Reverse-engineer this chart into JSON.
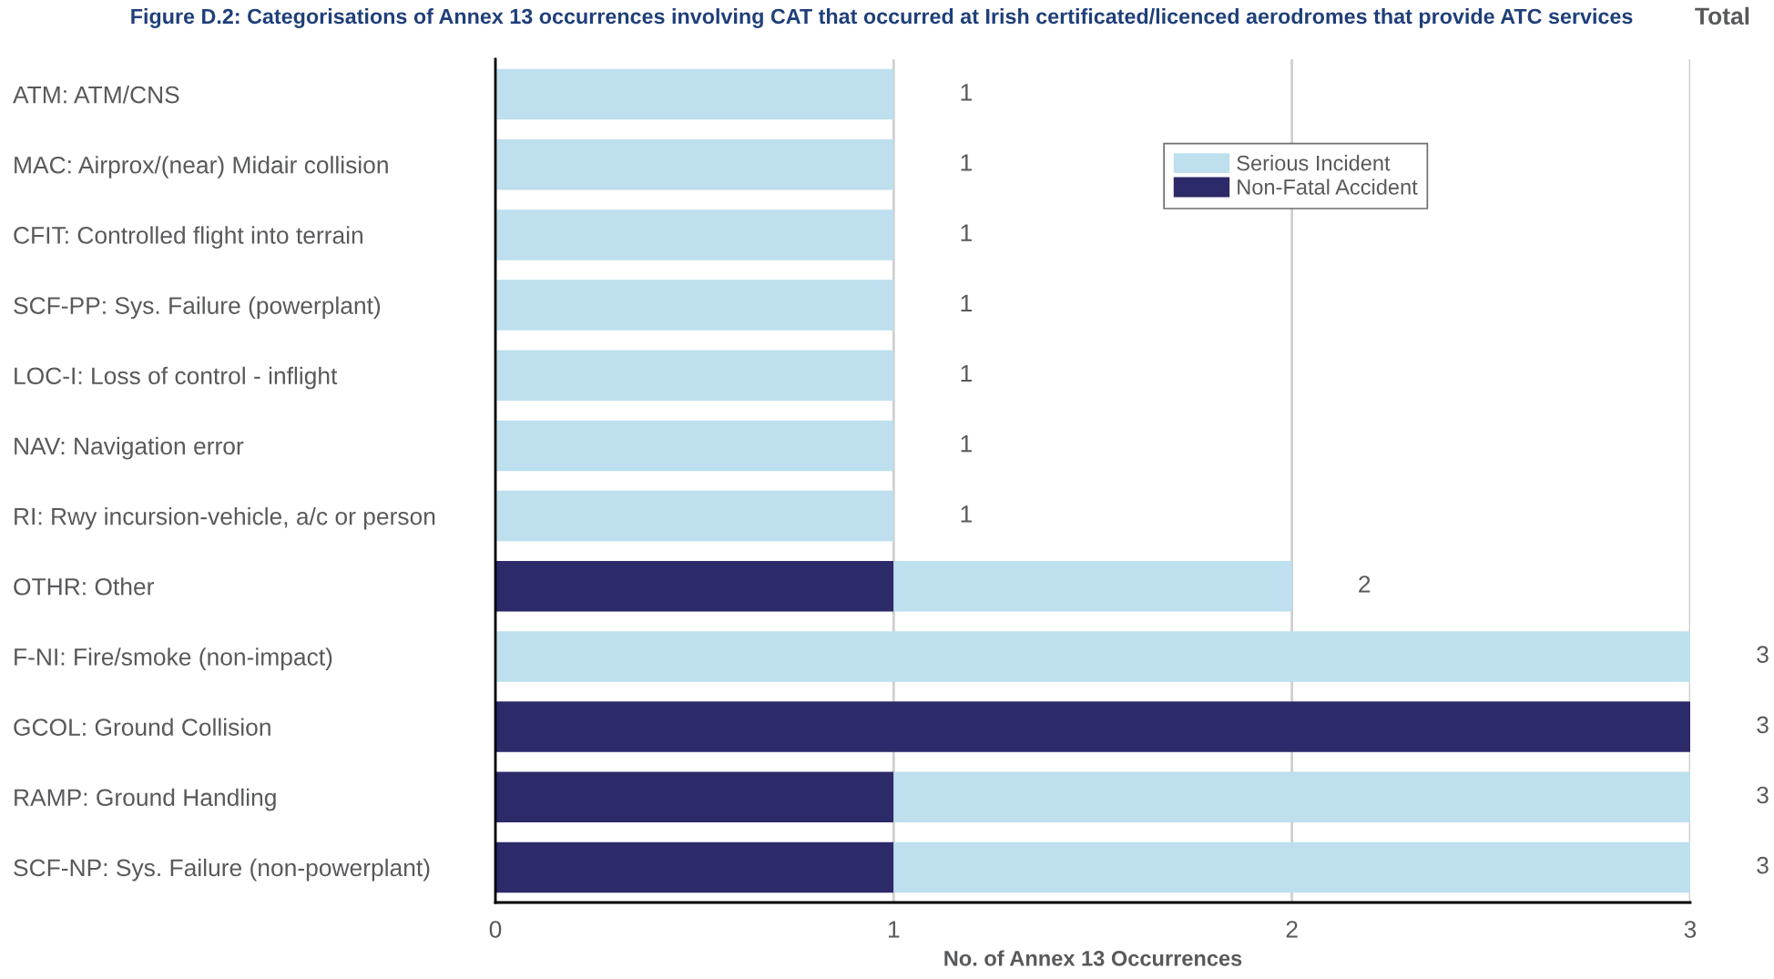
{
  "chart_data": {
    "type": "bar",
    "orientation": "horizontal",
    "stacked": true,
    "title": "Figure D.2: Categorisations of Annex 13 occurrences involving CAT that occurred at Irish certificated/licenced aerodromes that provide ATC services",
    "xlabel": "No. of Annex 13 Occurrences",
    "annotations": [
      "Total"
    ],
    "categories": [
      "ATM: ATM/CNS",
      "MAC: Airprox/(near) Midair collision",
      "CFIT: Controlled flight into terrain",
      "SCF-PP: Sys. Failure (powerplant)",
      "LOC-I: Loss of control - inflight",
      "NAV: Navigation error",
      "RI: Rwy incursion-vehicle, a/c or person",
      "OTHR: Other",
      "F-NI: Fire/smoke (non-impact)",
      "GCOL: Ground Collision",
      "RAMP: Ground Handling",
      "SCF-NP: Sys. Failure (non-powerplant)"
    ],
    "series": [
      {
        "name": "Non-Fatal Accident",
        "color": "#2d2a69",
        "values": [
          0,
          0,
          0,
          0,
          0,
          0,
          0,
          1,
          0,
          3,
          1,
          1
        ]
      },
      {
        "name": "Serious Incident",
        "color": "#bddfee",
        "values": [
          1,
          1,
          1,
          1,
          1,
          1,
          1,
          1,
          3,
          0,
          2,
          2
        ]
      }
    ],
    "totals": [
      "1",
      "1",
      "1",
      "1",
      "1",
      "1",
      "1",
      "2",
      "3",
      "3",
      "3",
      "3"
    ],
    "xlim": [
      0,
      3
    ],
    "xticks": [
      0,
      1,
      2,
      3
    ],
    "grid": "x",
    "legend": "top right"
  }
}
